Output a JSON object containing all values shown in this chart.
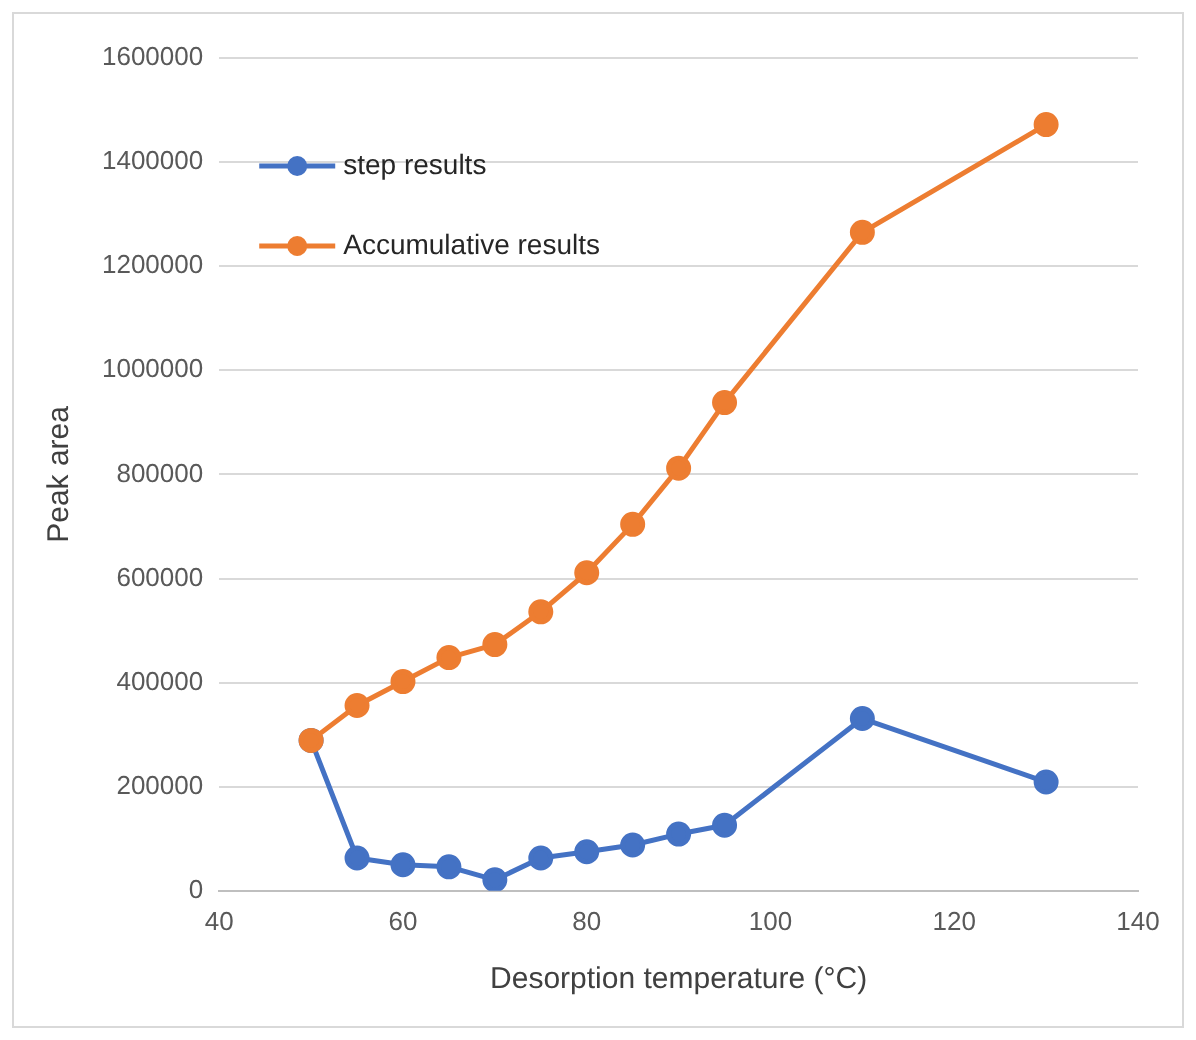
{
  "chart_data": {
    "type": "line",
    "xlabel": "Desorption temperature (°C)",
    "ylabel": "Peak area",
    "x": [
      50,
      55,
      60,
      65,
      70,
      75,
      80,
      85,
      90,
      95,
      110,
      130
    ],
    "series": [
      {
        "name": "step results",
        "color": "#4472c4",
        "values": [
          289000,
          63000,
          50000,
          46000,
          21000,
          63000,
          75000,
          88000,
          109000,
          126000,
          331000,
          209000
        ]
      },
      {
        "name": "Accumulative results",
        "color": "#ed7d31",
        "values": [
          289000,
          356000,
          402000,
          448000,
          473000,
          536000,
          611000,
          704000,
          812000,
          938000,
          1265000,
          1472000
        ]
      }
    ],
    "xlim": [
      40,
      140
    ],
    "xticks": [
      40,
      60,
      80,
      100,
      120,
      140
    ],
    "ylim": [
      0,
      1600000
    ],
    "yticks": [
      0,
      200000,
      400000,
      600000,
      800000,
      1000000,
      1200000,
      1400000,
      1600000
    ],
    "grid": "y",
    "legend": "top left",
    "marker": "circle",
    "line_style": "solid"
  }
}
